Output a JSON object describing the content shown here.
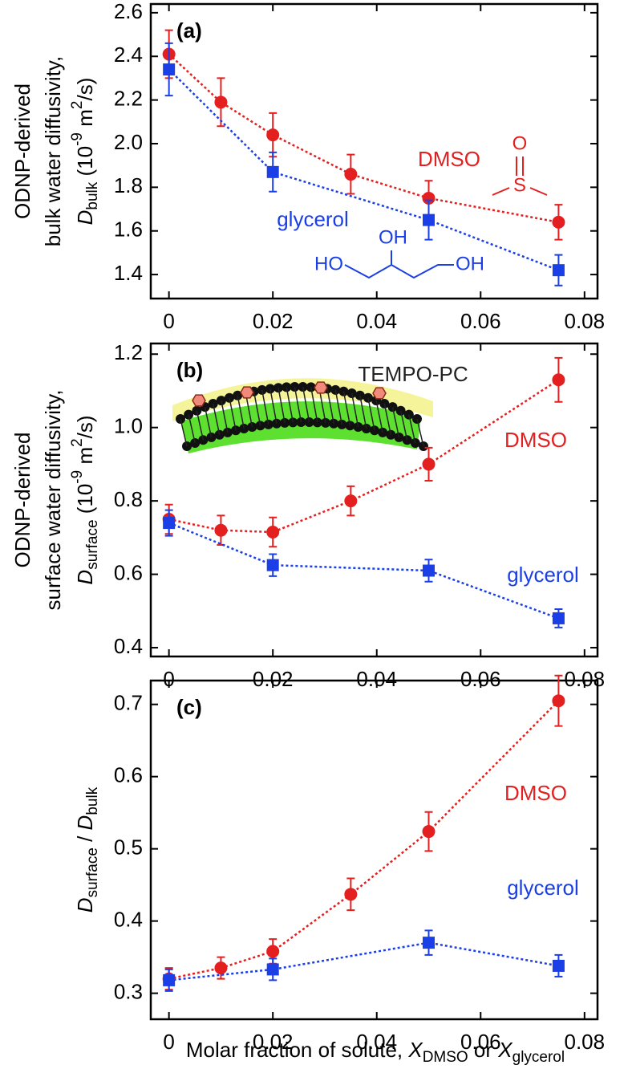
{
  "chart_data": [
    {
      "type": "line",
      "panel_label": "(a)",
      "ylabel_lines": [
        "ODNP-derived",
        "bulk water diffusivity,"
      ],
      "ylabel": [
        "D",
        "bulk",
        " (10",
        "-9",
        " m",
        "2",
        "/s)"
      ],
      "ylabel_style": [
        "italic",
        "sub",
        "normal",
        "sup",
        "normal",
        "sup",
        "normal"
      ],
      "xlim": [
        -0.0035,
        0.0825
      ],
      "xticks": [
        0,
        0.02,
        0.04,
        0.06,
        0.08
      ],
      "ylim": [
        1.29,
        2.64
      ],
      "yticks": [
        1.4,
        1.6,
        1.8,
        {
          "value": 2,
          "label": "2.0"
        },
        2.2,
        2.4,
        2.6
      ],
      "series": [
        {
          "name": "DMSO",
          "color": "#e41f1f",
          "marker": "circle",
          "x": [
            0,
            0.01,
            0.02,
            0.035,
            0.05,
            0.075
          ],
          "values": [
            2.41,
            2.19,
            2.04,
            1.86,
            1.75,
            1.64
          ],
          "errors": [
            0.11,
            0.11,
            0.1,
            0.09,
            0.08,
            0.08
          ]
        },
        {
          "name": "glycerol",
          "color": "#1b3fe6",
          "marker": "square",
          "x": [
            0,
            0.02,
            0.05,
            0.075
          ],
          "values": [
            2.34,
            1.87,
            1.65,
            1.42
          ],
          "errors": [
            0.12,
            0.09,
            0.09,
            0.07
          ]
        }
      ],
      "molecule_labels": [
        "O",
        "S",
        "HO",
        "OH",
        "OH"
      ]
    },
    {
      "type": "line",
      "panel_label": "(b)",
      "ylabel_lines": [
        "ODNP-derived",
        "surface water diffusivity,"
      ],
      "ylabel": [
        "D",
        "surface",
        " (10",
        "-9",
        " m",
        "2",
        "/s)"
      ],
      "ylabel_style": [
        "italic",
        "sub",
        "normal",
        "sup",
        "normal",
        "sup",
        "normal"
      ],
      "xlim": [
        -0.0035,
        0.0825
      ],
      "xticks": [
        0,
        0.02,
        0.04,
        0.06,
        0.08
      ],
      "ylim": [
        0.376,
        1.229
      ],
      "yticks": [
        0.4,
        0.6,
        0.8,
        {
          "value": 1,
          "label": "1.0"
        },
        1.2
      ],
      "series": [
        {
          "name": "DMSO",
          "color": "#e41f1f",
          "marker": "circle",
          "x": [
            0,
            0.01,
            0.02,
            0.035,
            0.05,
            0.075
          ],
          "values": [
            0.75,
            0.72,
            0.715,
            0.8,
            0.9,
            1.13
          ],
          "errors": [
            0.04,
            0.04,
            0.04,
            0.04,
            0.045,
            0.06
          ]
        },
        {
          "name": "glycerol",
          "color": "#1b3fe6",
          "marker": "square",
          "x": [
            0,
            0.02,
            0.05,
            0.075
          ],
          "values": [
            0.74,
            0.625,
            0.61,
            0.48
          ],
          "errors": [
            0.035,
            0.03,
            0.03,
            0.025
          ]
        }
      ],
      "inset_label": "TEMPO-PC"
    },
    {
      "type": "line",
      "panel_label": "(c)",
      "ylabel": [
        "D",
        "surface",
        " / ",
        "D",
        "bulk"
      ],
      "ylabel_style": [
        "italic",
        "sub",
        "normal",
        "italic",
        "sub"
      ],
      "xlabel": [
        "Molar fraction of solute, ",
        "X",
        "DMSO",
        " or ",
        "X",
        "glycerol"
      ],
      "xlabel_style": [
        "normal",
        "italic",
        "sub",
        "normal",
        "italic",
        "sub"
      ],
      "xlim": [
        -0.0035,
        0.0825
      ],
      "xticks": [
        0,
        0.02,
        0.04,
        0.06,
        0.08
      ],
      "ylim": [
        0.264,
        0.733
      ],
      "yticks": [
        0.3,
        0.4,
        0.5,
        0.6,
        0.7
      ],
      "series": [
        {
          "name": "DMSO",
          "color": "#e41f1f",
          "marker": "circle",
          "x": [
            0,
            0.01,
            0.02,
            0.035,
            0.05,
            0.075
          ],
          "values": [
            0.32,
            0.335,
            0.358,
            0.437,
            0.524,
            0.705
          ],
          "errors": [
            0.015,
            0.015,
            0.017,
            0.022,
            0.027,
            0.035
          ]
        },
        {
          "name": "glycerol",
          "color": "#1b3fe6",
          "marker": "square",
          "x": [
            0,
            0.02,
            0.05,
            0.075
          ],
          "values": [
            0.318,
            0.333,
            0.37,
            0.338
          ],
          "errors": [
            0.015,
            0.015,
            0.017,
            0.015
          ]
        }
      ]
    }
  ]
}
